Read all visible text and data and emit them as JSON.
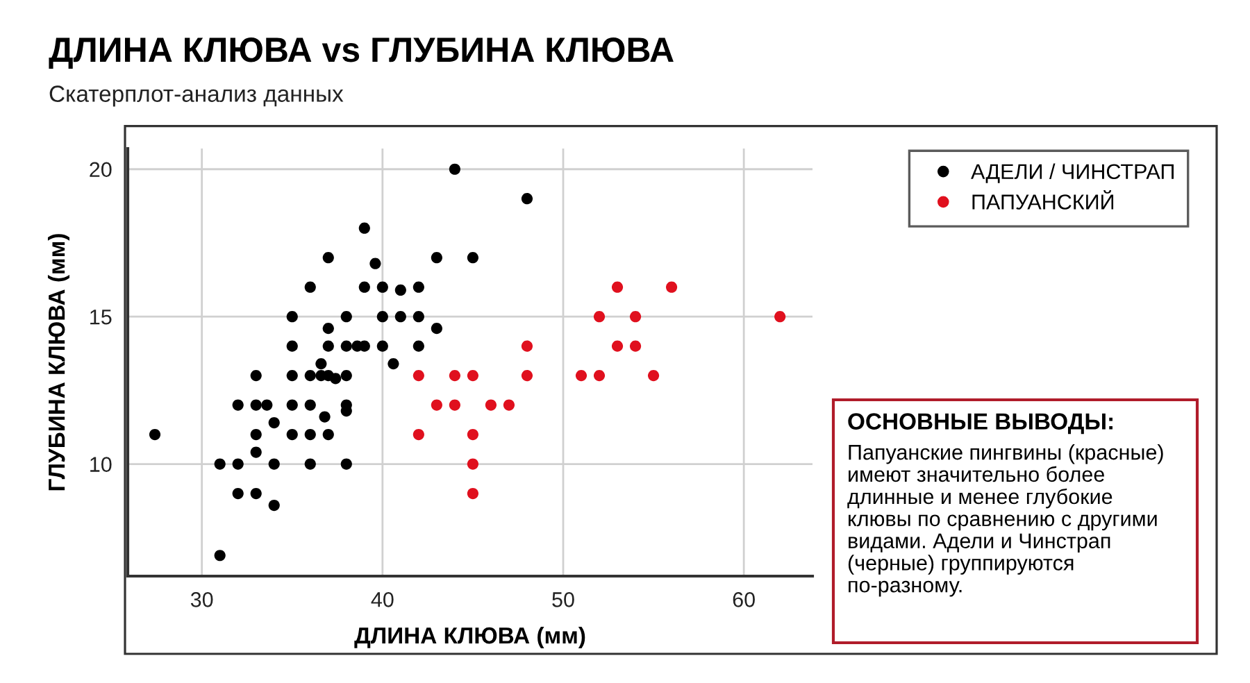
{
  "chart_data": {
    "type": "scatter",
    "title": "ДЛИНА КЛЮВА vs ГЛУБИНА КЛЮВА",
    "subtitle": "Скатерплот-анализ данных",
    "xlabel": "ДЛИНА КЛЮВА (мм)",
    "ylabel": "ГЛУБИНА КЛЮВА (мм)",
    "xlim": [
      25.9,
      63.8
    ],
    "ylim": [
      6.2,
      20.7
    ],
    "xticks": [
      30,
      40,
      50,
      60
    ],
    "yticks": [
      10,
      15,
      20
    ],
    "grid": true,
    "legend": "top right",
    "marker": "circle",
    "series": [
      {
        "name": "АДЕЛИ / ЧИНСТРАП",
        "color": "#000000",
        "x": [
          44,
          39,
          37,
          43,
          39.6,
          36,
          39,
          40,
          41,
          42,
          35,
          38,
          40,
          41,
          42,
          37,
          43,
          35,
          37,
          38,
          38.6,
          39,
          40,
          42,
          36.6,
          40.6,
          33,
          35,
          36,
          36.6,
          37,
          37.4,
          38,
          32,
          33,
          33.6,
          35,
          36,
          38,
          38,
          36.8,
          34,
          27.4,
          33,
          35,
          36,
          37,
          33,
          31,
          32,
          34,
          36,
          38,
          32,
          33,
          34,
          31,
          48,
          45
        ],
        "values": [
          20,
          18,
          17,
          17,
          16.8,
          16,
          16,
          16,
          15.9,
          16,
          15,
          15,
          15,
          15,
          15,
          14.6,
          14.6,
          14,
          14,
          14,
          14,
          14,
          14,
          14,
          13.4,
          13.4,
          13,
          13,
          13,
          13,
          13,
          12.9,
          13,
          12,
          12,
          12,
          12,
          12,
          12,
          11.8,
          11.6,
          11.4,
          11,
          11,
          11,
          11,
          11,
          10.4,
          10,
          10,
          10,
          10,
          10,
          9,
          9,
          8.6,
          6.9,
          19,
          17
        ]
      },
      {
        "name": "ПАПУАНСКИЙ",
        "color": "#e0101e",
        "x": [
          53,
          56,
          52,
          54,
          62,
          48,
          53,
          54,
          42,
          44,
          45,
          48,
          51,
          52,
          55,
          43,
          44,
          46,
          47,
          42,
          45,
          45,
          45
        ],
        "values": [
          16,
          16,
          15,
          15,
          15,
          14,
          14,
          14,
          13,
          13,
          13,
          13,
          13,
          13,
          13,
          12,
          12,
          12,
          12,
          11,
          11,
          10,
          9
        ]
      }
    ],
    "annotations": [
      "ОСНОВНЫЕ ВЫВОДЫ:",
      "Папуанские пингвины (красные)\nимеют значительно более\nдлинные и менее глубокие\nклювы по сравнению с другими\nвидами. Адели и Чинстрап\n(черные) группируются\nпо-разному."
    ]
  }
}
